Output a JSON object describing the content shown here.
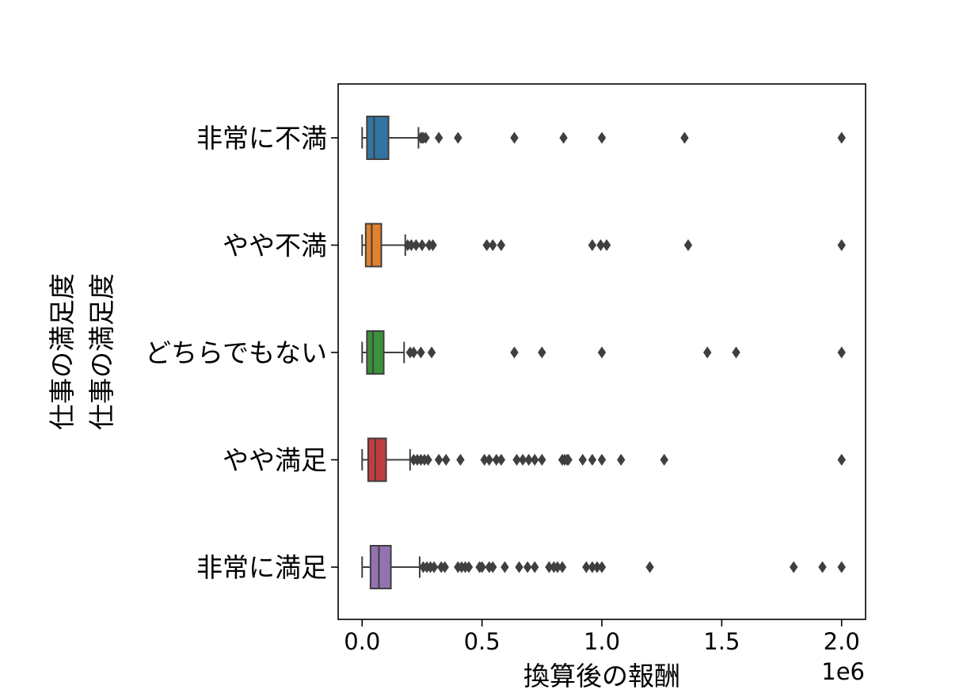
{
  "chart_data": {
    "type": "boxplot",
    "orientation": "horizontal",
    "xlabel": "換算後の報酬",
    "x_offset_text": "1e6",
    "ylabel_lines": [
      "仕事の満足度",
      "仕事の満足度"
    ],
    "xlim": [
      -0.1,
      2.1
    ],
    "x_unit": 1000000,
    "xticks": [
      0.0,
      0.5,
      1.0,
      1.5,
      2.0
    ],
    "xtick_labels": [
      "0.0",
      "0.5",
      "1.0",
      "1.5",
      "2.0"
    ],
    "grid": false,
    "categories": [
      "非常に不満",
      "やや不満",
      "どちらでもない",
      "やや満足",
      "非常に満足"
    ],
    "colors": [
      "#3274a1",
      "#e1812c",
      "#3a923a",
      "#c03d3e",
      "#9372b2"
    ],
    "boxes": [
      {
        "category": "非常に不満",
        "whisker_low": 0.0,
        "q1": 0.02,
        "median": 0.05,
        "q3": 0.11,
        "whisker_high": 0.235,
        "outliers": [
          0.245,
          0.25,
          0.255,
          0.265,
          0.32,
          0.4,
          0.635,
          0.84,
          1.0,
          1.345,
          2.0
        ]
      },
      {
        "category": "やや不満",
        "whisker_low": 0.0,
        "q1": 0.015,
        "median": 0.04,
        "q3": 0.08,
        "whisker_high": 0.18,
        "outliers": [
          0.19,
          0.205,
          0.225,
          0.25,
          0.28,
          0.295,
          0.52,
          0.545,
          0.58,
          0.96,
          0.995,
          1.02,
          1.36,
          2.0
        ]
      },
      {
        "category": "どちらでもない",
        "whisker_low": 0.0,
        "q1": 0.02,
        "median": 0.045,
        "q3": 0.09,
        "whisker_high": 0.175,
        "outliers": [
          0.2,
          0.215,
          0.245,
          0.29,
          0.635,
          0.75,
          1.0,
          1.44,
          1.56,
          2.0
        ]
      },
      {
        "category": "やや満足",
        "whisker_low": 0.0,
        "q1": 0.025,
        "median": 0.055,
        "q3": 0.1,
        "whisker_high": 0.2,
        "outliers": [
          0.215,
          0.23,
          0.245,
          0.26,
          0.275,
          0.32,
          0.35,
          0.41,
          0.51,
          0.53,
          0.56,
          0.58,
          0.645,
          0.67,
          0.695,
          0.72,
          0.75,
          0.835,
          0.845,
          0.855,
          0.86,
          0.92,
          0.96,
          1.0,
          1.08,
          1.26,
          2.0
        ]
      },
      {
        "category": "非常に満足",
        "whisker_low": 0.0,
        "q1": 0.035,
        "median": 0.07,
        "q3": 0.12,
        "whisker_high": 0.24,
        "outliers": [
          0.255,
          0.27,
          0.285,
          0.3,
          0.33,
          0.345,
          0.4,
          0.415,
          0.43,
          0.445,
          0.49,
          0.5,
          0.53,
          0.545,
          0.595,
          0.655,
          0.69,
          0.72,
          0.78,
          0.8,
          0.815,
          0.835,
          0.935,
          0.96,
          0.98,
          1.0,
          1.2,
          1.8,
          1.92,
          2.0
        ]
      }
    ]
  }
}
